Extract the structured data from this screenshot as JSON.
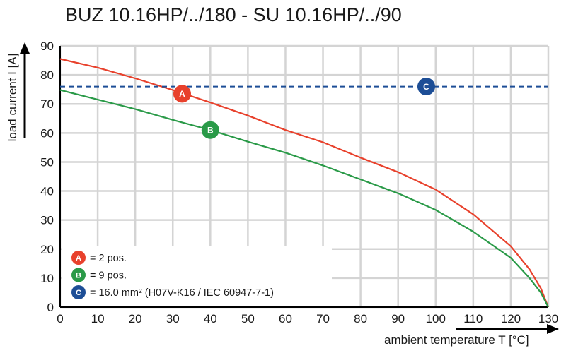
{
  "chart_data": {
    "type": "line",
    "title": "BUZ 10.16HP/../180 - SU 10.16HP/../90",
    "xlabel": "ambient temperature T [°C]",
    "ylabel": "load current I [A]",
    "xlim": [
      0,
      130
    ],
    "ylim": [
      0,
      90
    ],
    "x_ticks": [
      0,
      10,
      20,
      30,
      40,
      50,
      60,
      70,
      80,
      90,
      100,
      110,
      120,
      130
    ],
    "y_ticks": [
      0,
      10,
      20,
      30,
      40,
      50,
      60,
      70,
      80,
      90
    ],
    "grid": true,
    "series": [
      {
        "name": "A",
        "color": "#e8412c",
        "x": [
          0,
          10,
          20,
          30,
          40,
          50,
          60,
          70,
          80,
          90,
          100,
          110,
          120,
          125,
          128,
          130
        ],
        "y": [
          85.5,
          82.5,
          78.8,
          74.8,
          70.5,
          66.0,
          61.0,
          56.8,
          51.5,
          46.5,
          40.5,
          32.0,
          21.0,
          13.0,
          6.5,
          0
        ]
      },
      {
        "name": "B",
        "color": "#2a9a48",
        "x": [
          0,
          10,
          20,
          30,
          40,
          50,
          60,
          70,
          80,
          90,
          100,
          110,
          120,
          125,
          128,
          130
        ],
        "y": [
          74.8,
          71.5,
          68.2,
          64.5,
          61.0,
          57.0,
          53.2,
          48.8,
          44.0,
          39.2,
          33.5,
          26.0,
          17.0,
          10.0,
          5.0,
          0
        ]
      },
      {
        "name": "C",
        "color": "#1d4e96",
        "style": "dashed",
        "x": [
          0,
          130
        ],
        "y": [
          76,
          76
        ]
      }
    ],
    "markers": [
      {
        "label": "A",
        "x": 32.5,
        "y": 73.5,
        "color": "#e8412c"
      },
      {
        "label": "B",
        "x": 40,
        "y": 61,
        "color": "#2a9a48"
      },
      {
        "label": "C",
        "x": 97.5,
        "y": 76,
        "color": "#1d4e96"
      }
    ],
    "legend": [
      {
        "label": "A",
        "color": "#e8412c",
        "text": "= 2 pos."
      },
      {
        "label": "B",
        "color": "#2a9a48",
        "text": "= 9 pos."
      },
      {
        "label": "C",
        "color": "#1d4e96",
        "text": "= 16.0 mm² (H07V-K16 / IEC 60947-7-1)"
      }
    ]
  }
}
